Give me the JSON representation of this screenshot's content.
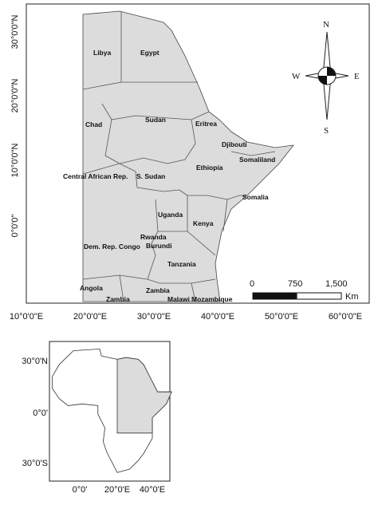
{
  "main_map": {
    "countries": [
      "Libya",
      "Egypt",
      "Chad",
      "Sudan",
      "Eritrea",
      "Djibouti",
      "Somaliland",
      "Ethiopia",
      "Central African Rep.",
      "S. Sudan",
      "Somalia",
      "Uganda",
      "Kenya",
      "Rwanda",
      "Burundi",
      "Dem. Rep. Congo",
      "Tanzania",
      "Angola",
      "Zambia",
      "Zambia",
      "Malawi",
      "Mozambique"
    ],
    "lon_labels": [
      "10°0'0\"E",
      "20°0'0\"E",
      "30°0'0\"E",
      "40°0'0\"E",
      "50°0'0\"E",
      "60°0'0\"E"
    ],
    "lat_labels": [
      "30°0'0\"N",
      "20°0'0\"N",
      "10°0'0\"N",
      "0°0'0\""
    ],
    "compass": {
      "n": "N",
      "w": "W",
      "e": "E",
      "s": "S"
    },
    "scale_bar": {
      "ticks": [
        "0",
        "750",
        "1,500"
      ],
      "unit": "Km"
    }
  },
  "inset_map": {
    "lat_labels": [
      "30°0'N",
      "0°0'",
      "30°0'S"
    ],
    "lon_labels": [
      "0°0'",
      "20°0'E",
      "40°0'E"
    ]
  }
}
